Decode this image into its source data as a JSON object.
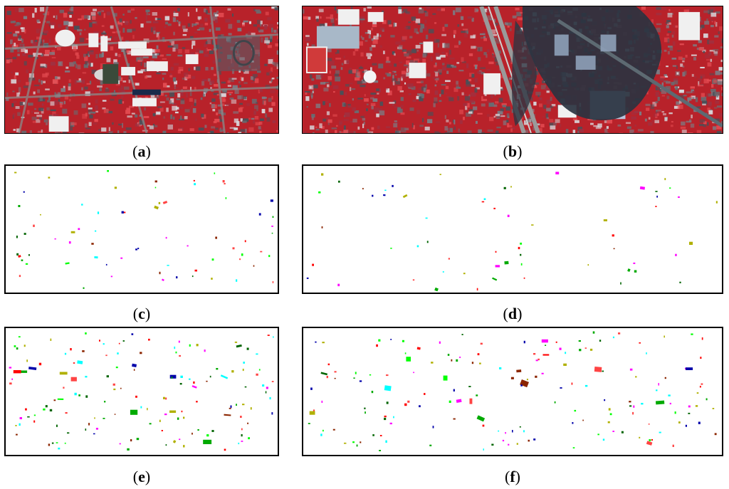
{
  "figure": {
    "panels": [
      {
        "id": "a",
        "open": "(",
        "letter": "a",
        "close": ")",
        "kind": "false-color-image"
      },
      {
        "id": "b",
        "open": "(",
        "letter": "b",
        "close": ")",
        "kind": "false-color-image"
      },
      {
        "id": "c",
        "open": "(",
        "letter": "c",
        "close": ")",
        "kind": "sample-map"
      },
      {
        "id": "d",
        "open": "(",
        "letter": "d",
        "close": ")",
        "kind": "sample-map"
      },
      {
        "id": "e",
        "open": "(",
        "letter": "e",
        "close": ")",
        "kind": "sample-map"
      },
      {
        "id": "f",
        "open": "(",
        "letter": "f",
        "close": ")",
        "kind": "sample-map"
      }
    ],
    "class_colors": [
      "#ff0000",
      "#00aa00",
      "#00ff00",
      "#0000aa",
      "#ff00ff",
      "#00ffff",
      "#b0b000",
      "#8b2500",
      "#006400",
      "#ff4444"
    ],
    "image_palette": {
      "vegetation": "#c4242c",
      "urban": "#6a6a70",
      "roof": "#f2f2f2",
      "shadow": "#2a3038",
      "road": "#8a8a8a"
    }
  }
}
